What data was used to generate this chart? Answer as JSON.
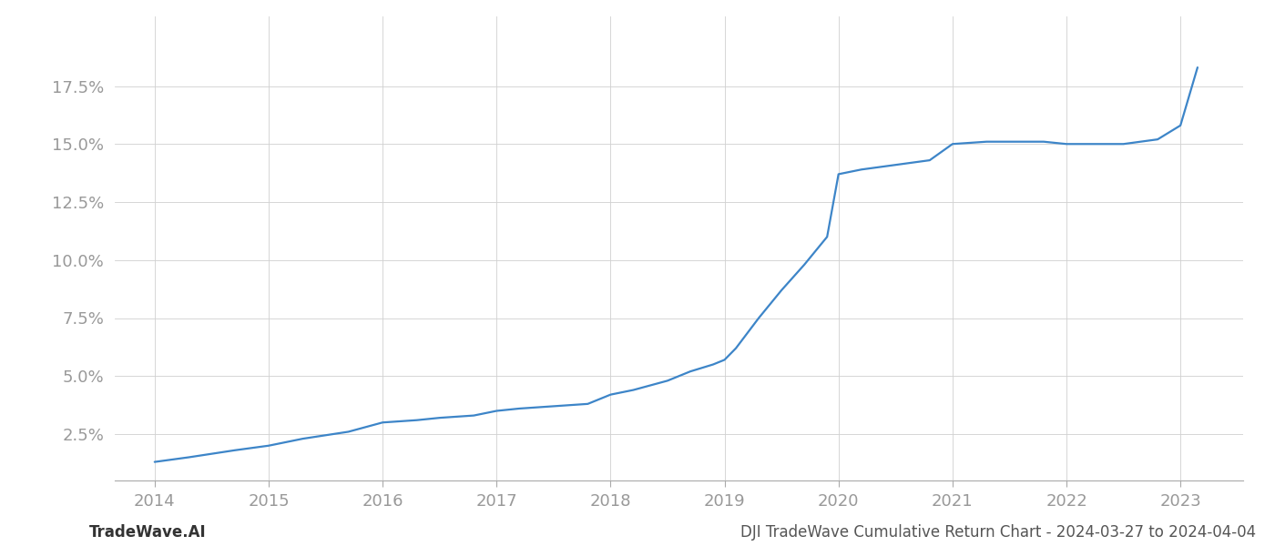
{
  "x_years": [
    2014.0,
    2014.3,
    2014.7,
    2015.0,
    2015.3,
    2015.7,
    2016.0,
    2016.3,
    2016.5,
    2016.8,
    2017.0,
    2017.2,
    2017.5,
    2017.8,
    2018.0,
    2018.2,
    2018.5,
    2018.7,
    2018.9,
    2019.0,
    2019.1,
    2019.3,
    2019.5,
    2019.7,
    2019.9,
    2020.0,
    2020.2,
    2020.5,
    2020.8,
    2021.0,
    2021.3,
    2021.5,
    2021.8,
    2022.0,
    2022.3,
    2022.5,
    2022.8,
    2023.0,
    2023.15
  ],
  "y_values": [
    0.013,
    0.015,
    0.018,
    0.02,
    0.023,
    0.026,
    0.03,
    0.031,
    0.032,
    0.033,
    0.035,
    0.036,
    0.037,
    0.038,
    0.042,
    0.044,
    0.048,
    0.052,
    0.055,
    0.057,
    0.062,
    0.075,
    0.087,
    0.098,
    0.11,
    0.137,
    0.139,
    0.141,
    0.143,
    0.15,
    0.151,
    0.151,
    0.151,
    0.15,
    0.15,
    0.15,
    0.152,
    0.158,
    0.183
  ],
  "line_color": "#3d85c8",
  "background_color": "#ffffff",
  "grid_color": "#d0d0d0",
  "footer_left": "TradeWave.AI",
  "footer_right": "DJI TradeWave Cumulative Return Chart - 2024-03-27 to 2024-04-04",
  "ytick_labels": [
    "2.5%",
    "5.0%",
    "7.5%",
    "10.0%",
    "12.5%",
    "15.0%",
    "17.5%"
  ],
  "ytick_values": [
    0.025,
    0.05,
    0.075,
    0.1,
    0.125,
    0.15,
    0.175
  ],
  "xtick_labels": [
    "2014",
    "2015",
    "2016",
    "2017",
    "2018",
    "2019",
    "2020",
    "2021",
    "2022",
    "2023"
  ],
  "xtick_values": [
    2014,
    2015,
    2016,
    2017,
    2018,
    2019,
    2020,
    2021,
    2022,
    2023
  ],
  "xlim": [
    2013.65,
    2023.55
  ],
  "ylim": [
    0.005,
    0.205
  ],
  "tick_color": "#999999",
  "footer_color": "#555555",
  "footer_left_color": "#333333",
  "line_width": 1.6
}
